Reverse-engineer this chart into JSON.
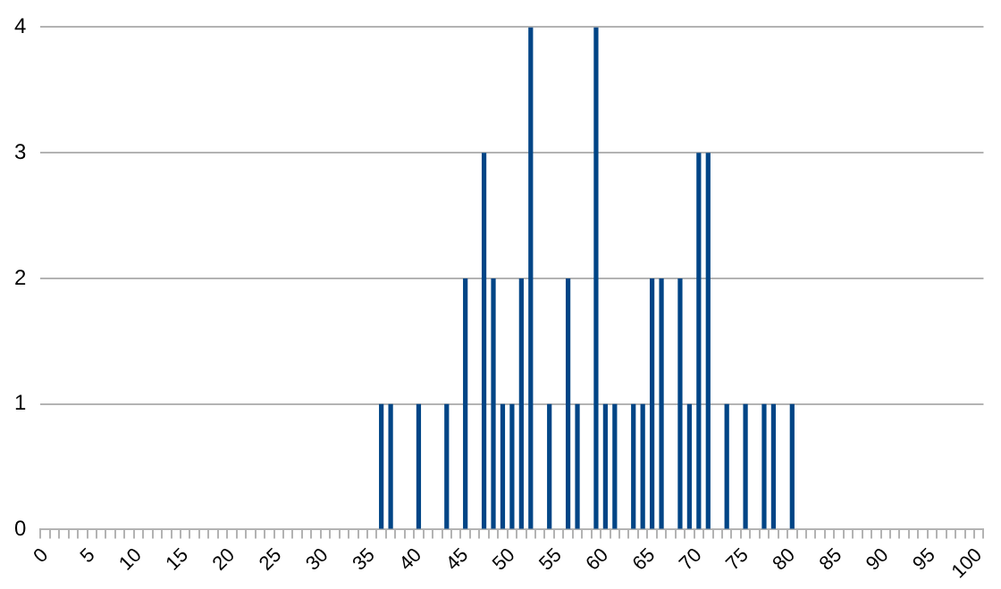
{
  "chart_data": {
    "type": "bar",
    "categories": [
      "0",
      null,
      null,
      null,
      null,
      "5",
      null,
      null,
      null,
      null,
      "10",
      null,
      null,
      null,
      null,
      "15",
      null,
      null,
      null,
      null,
      "20",
      null,
      null,
      null,
      null,
      "25",
      null,
      null,
      null,
      null,
      "30",
      null,
      null,
      null,
      null,
      "35",
      null,
      null,
      null,
      null,
      "40",
      null,
      null,
      null,
      null,
      "45",
      null,
      null,
      null,
      null,
      "50",
      null,
      null,
      null,
      null,
      "55",
      null,
      null,
      null,
      null,
      "60",
      null,
      null,
      null,
      null,
      "65",
      null,
      null,
      null,
      null,
      "70",
      null,
      null,
      null,
      null,
      "75",
      null,
      null,
      null,
      null,
      "80",
      null,
      null,
      null,
      null,
      "85",
      null,
      null,
      null,
      null,
      "90",
      null,
      null,
      null,
      null,
      "95",
      null,
      null,
      null,
      null,
      "100"
    ],
    "values": [
      0,
      0,
      0,
      0,
      0,
      0,
      0,
      0,
      0,
      0,
      0,
      0,
      0,
      0,
      0,
      0,
      0,
      0,
      0,
      0,
      0,
      0,
      0,
      0,
      0,
      0,
      0,
      0,
      0,
      0,
      0,
      0,
      0,
      0,
      0,
      0,
      1,
      1,
      0,
      0,
      1,
      0,
      0,
      1,
      0,
      2,
      0,
      3,
      2,
      1,
      1,
      2,
      4,
      0,
      1,
      0,
      2,
      1,
      0,
      4,
      1,
      1,
      0,
      1,
      1,
      2,
      2,
      0,
      2,
      1,
      3,
      3,
      0,
      1,
      0,
      1,
      0,
      1,
      1,
      0,
      1,
      0,
      0,
      0,
      0,
      0,
      0,
      0,
      0,
      0,
      0,
      0,
      0,
      0,
      0,
      0,
      0,
      0,
      0,
      0,
      0
    ],
    "color": "#004586",
    "ylim": [
      0,
      4
    ],
    "yticks": [
      0,
      1,
      2,
      3,
      4
    ],
    "grid": "y",
    "legend": false
  }
}
